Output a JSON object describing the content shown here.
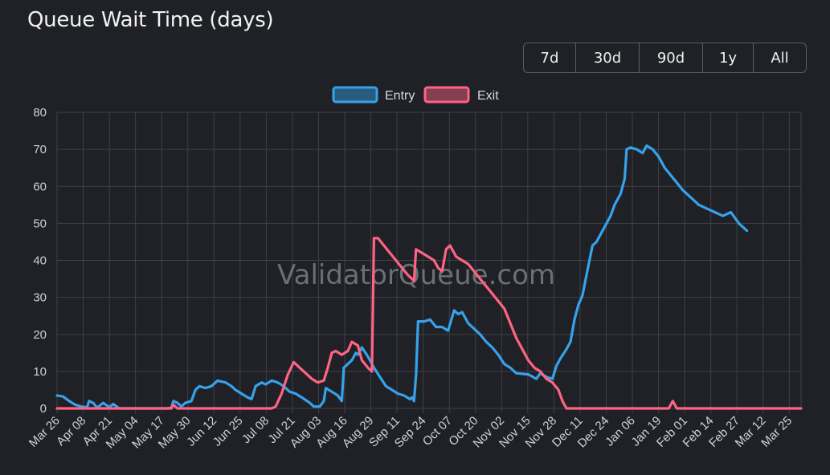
{
  "header": {
    "title": "Queue Wait Time (days)"
  },
  "range_buttons": [
    "7d",
    "30d",
    "90d",
    "1y",
    "All"
  ],
  "watermark": "ValidatorQueue.com",
  "colors": {
    "entry": "#36a2eb",
    "exit": "#ff6384",
    "grid": "#3e4147"
  },
  "chart_data": {
    "type": "line",
    "title": "Queue Wait Time (days)",
    "xlabel": "",
    "ylabel": "",
    "ylim": [
      0,
      80
    ],
    "yticks": [
      0,
      10,
      20,
      30,
      40,
      50,
      60,
      70,
      80
    ],
    "x_labels": [
      "Mar 26",
      "Apr 08",
      "Apr 21",
      "May 04",
      "May 17",
      "May 30",
      "Jun 12",
      "Jun 25",
      "Jul 08",
      "Jul 21",
      "Aug 03",
      "Aug 16",
      "Aug 29",
      "Sep 11",
      "Sep 24",
      "Oct 07",
      "Oct 20",
      "Nov 02",
      "Nov 15",
      "Nov 28",
      "Dec 11",
      "Dec 24",
      "Jan 06",
      "Jan 19",
      "Feb 01",
      "Feb 14",
      "Feb 27",
      "Mar 12",
      "Mar 25"
    ],
    "x_range_days": [
      0,
      371
    ],
    "legend": "top-center",
    "series": [
      {
        "name": "Entry",
        "color": "#36a2eb",
        "points": [
          [
            0,
            3.5
          ],
          [
            3,
            3.2
          ],
          [
            6,
            2
          ],
          [
            9,
            1
          ],
          [
            12,
            0.5
          ],
          [
            15,
            0.3
          ],
          [
            16,
            2
          ],
          [
            18,
            1.5
          ],
          [
            20,
            0.2
          ],
          [
            23,
            1.5
          ],
          [
            26,
            0.3
          ],
          [
            28,
            1.2
          ],
          [
            31,
            0
          ],
          [
            40,
            0
          ],
          [
            55,
            0
          ],
          [
            57,
            0.2
          ],
          [
            58,
            2
          ],
          [
            60,
            1.5
          ],
          [
            62,
            0.5
          ],
          [
            64,
            1.5
          ],
          [
            67,
            2
          ],
          [
            69,
            5
          ],
          [
            71,
            6
          ],
          [
            74,
            5.5
          ],
          [
            77,
            6
          ],
          [
            80,
            7.5
          ],
          [
            84,
            7
          ],
          [
            87,
            6
          ],
          [
            89,
            5
          ],
          [
            92,
            4
          ],
          [
            95,
            3
          ],
          [
            97,
            2.5
          ],
          [
            99,
            6
          ],
          [
            102,
            7
          ],
          [
            104,
            6.5
          ],
          [
            107,
            7.5
          ],
          [
            110,
            7
          ],
          [
            113,
            6
          ],
          [
            116,
            4.5
          ],
          [
            119,
            4
          ],
          [
            122,
            3
          ],
          [
            126,
            1.5
          ],
          [
            128,
            0.5
          ],
          [
            131,
            0.5
          ],
          [
            133,
            2
          ],
          [
            134,
            5.5
          ],
          [
            137,
            4.5
          ],
          [
            140,
            3.5
          ],
          [
            142,
            2
          ],
          [
            143,
            11
          ],
          [
            147,
            13
          ],
          [
            149,
            15
          ],
          [
            150,
            14.5
          ],
          [
            152,
            16.5
          ],
          [
            155,
            14
          ],
          [
            158,
            11
          ],
          [
            161,
            8.5
          ],
          [
            164,
            6
          ],
          [
            167,
            5
          ],
          [
            170,
            4
          ],
          [
            173,
            3.5
          ],
          [
            176,
            2.5
          ],
          [
            177,
            3
          ],
          [
            178,
            2
          ],
          [
            179,
            9
          ],
          [
            180,
            23.5
          ],
          [
            183,
            23.5
          ],
          [
            186,
            24
          ],
          [
            189,
            22
          ],
          [
            192,
            22
          ],
          [
            195,
            21
          ],
          [
            198,
            26.5
          ],
          [
            200,
            25.5
          ],
          [
            202,
            26
          ],
          [
            205,
            23
          ],
          [
            208,
            21.5
          ],
          [
            211,
            20
          ],
          [
            214,
            18
          ],
          [
            217,
            16.5
          ],
          [
            220,
            14.5
          ],
          [
            223,
            12
          ],
          [
            226,
            11
          ],
          [
            229,
            9.5
          ],
          [
            235,
            9.2
          ],
          [
            239,
            8
          ],
          [
            241,
            9.5
          ],
          [
            244,
            8.5
          ],
          [
            247,
            8
          ],
          [
            249,
            11.5
          ],
          [
            251,
            13.5
          ],
          [
            254,
            16
          ],
          [
            256,
            18
          ],
          [
            258,
            24
          ],
          [
            260,
            28
          ],
          [
            262,
            30.5
          ],
          [
            264,
            36
          ],
          [
            267,
            44
          ],
          [
            269,
            45
          ],
          [
            271,
            47
          ],
          [
            273,
            49
          ],
          [
            276,
            52
          ],
          [
            278,
            55
          ],
          [
            281,
            58
          ],
          [
            283,
            62
          ],
          [
            284,
            70
          ],
          [
            286,
            70.5
          ],
          [
            289,
            70
          ],
          [
            292,
            69
          ],
          [
            294,
            71
          ],
          [
            297,
            70
          ],
          [
            300,
            68
          ],
          [
            303,
            65
          ],
          [
            306,
            63
          ],
          [
            309,
            61
          ],
          [
            312,
            59
          ],
          [
            316,
            57
          ],
          [
            320,
            55
          ],
          [
            324,
            54
          ],
          [
            328,
            53
          ],
          [
            332,
            52
          ],
          [
            336,
            53
          ],
          [
            340,
            50
          ],
          [
            344,
            48
          ]
        ]
      },
      {
        "name": "Exit",
        "color": "#ff6384",
        "points": [
          [
            0,
            0
          ],
          [
            57,
            0
          ],
          [
            58,
            1
          ],
          [
            60,
            0
          ],
          [
            107,
            0
          ],
          [
            109,
            0.5
          ],
          [
            112,
            4
          ],
          [
            115,
            9
          ],
          [
            118,
            12.5
          ],
          [
            121,
            11
          ],
          [
            124,
            9.5
          ],
          [
            127,
            8
          ],
          [
            130,
            7
          ],
          [
            133,
            7.5
          ],
          [
            135,
            11
          ],
          [
            137,
            15
          ],
          [
            139,
            15.5
          ],
          [
            142,
            14.5
          ],
          [
            145,
            15.5
          ],
          [
            147,
            18
          ],
          [
            150,
            17
          ],
          [
            152,
            13
          ],
          [
            155,
            11
          ],
          [
            157,
            10
          ],
          [
            158,
            46
          ],
          [
            160,
            46
          ],
          [
            163,
            44
          ],
          [
            166,
            42
          ],
          [
            169,
            40
          ],
          [
            172,
            38
          ],
          [
            175,
            36
          ],
          [
            178,
            34.5
          ],
          [
            179,
            43
          ],
          [
            182,
            42
          ],
          [
            185,
            41
          ],
          [
            188,
            40
          ],
          [
            190,
            38
          ],
          [
            192,
            37
          ],
          [
            194,
            43
          ],
          [
            196,
            44
          ],
          [
            199,
            41
          ],
          [
            202,
            40
          ],
          [
            205,
            39
          ],
          [
            208,
            37
          ],
          [
            211,
            35
          ],
          [
            214,
            33
          ],
          [
            217,
            31
          ],
          [
            220,
            29
          ],
          [
            223,
            27
          ],
          [
            226,
            23
          ],
          [
            229,
            19
          ],
          [
            232,
            16
          ],
          [
            235,
            13
          ],
          [
            238,
            11
          ],
          [
            241,
            10
          ],
          [
            244,
            8
          ],
          [
            247,
            7
          ],
          [
            250,
            5
          ],
          [
            252,
            2
          ],
          [
            254,
            0
          ],
          [
            305,
            0
          ],
          [
            307,
            2
          ],
          [
            309,
            0
          ],
          [
            371,
            0
          ]
        ]
      }
    ]
  }
}
